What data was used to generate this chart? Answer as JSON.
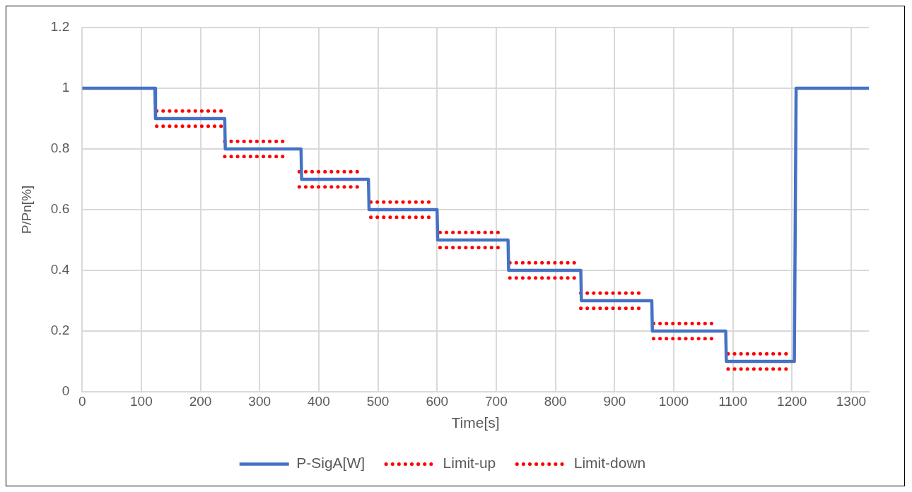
{
  "chart_data": {
    "type": "line",
    "xlabel": "Time[s]",
    "ylabel": "P/Pn[%]",
    "xlim": [
      0,
      1330
    ],
    "xticks": [
      0,
      100,
      200,
      300,
      400,
      500,
      600,
      700,
      800,
      900,
      1000,
      1100,
      1200,
      1300
    ],
    "ylim": [
      0,
      1.2
    ],
    "yticks": [
      0,
      0.2,
      0.4,
      0.6,
      0.8,
      1,
      1.2
    ],
    "grid": true,
    "legend": "bottom",
    "marker": "none",
    "series": [
      {
        "name": "P-SigA[W]",
        "color": "#4472c4",
        "line_style": "solid",
        "x": [
          0,
          123,
          124,
          241,
          242,
          370,
          371,
          484,
          485,
          600,
          601,
          720,
          721,
          843,
          844,
          963,
          964,
          1088,
          1089,
          1204,
          1207,
          1330
        ],
        "values": [
          1,
          1,
          0.9,
          0.9,
          0.8,
          0.8,
          0.7,
          0.7,
          0.6,
          0.6,
          0.5,
          0.5,
          0.4,
          0.4,
          0.3,
          0.3,
          0.2,
          0.2,
          0.1,
          0.1,
          1,
          1
        ]
      },
      {
        "name": "Limit-up",
        "color": "#ff0000",
        "line_style": "dotted",
        "x": [
          126,
          236,
          239,
          241,
          342,
          355,
          367,
          468,
          478,
          488,
          589,
          597,
          605,
          707,
          715,
          723,
          838,
          840,
          843,
          946,
          955,
          966,
          1065,
          1080,
          1092,
          1197
        ],
        "values": [
          0.925,
          0.925,
          null,
          0.825,
          0.825,
          null,
          0.725,
          0.725,
          null,
          0.625,
          0.625,
          null,
          0.525,
          0.525,
          null,
          0.425,
          0.425,
          null,
          0.325,
          0.325,
          null,
          0.225,
          0.225,
          null,
          0.125,
          0.125
        ]
      },
      {
        "name": "Limit-down",
        "color": "#ff0000",
        "line_style": "dotted",
        "x": [
          126,
          236,
          239,
          241,
          342,
          355,
          367,
          468,
          478,
          488,
          589,
          597,
          605,
          707,
          715,
          723,
          838,
          840,
          843,
          946,
          955,
          966,
          1065,
          1080,
          1092,
          1197
        ],
        "values": [
          0.875,
          0.875,
          null,
          0.775,
          0.775,
          null,
          0.675,
          0.675,
          null,
          0.575,
          0.575,
          null,
          0.475,
          0.475,
          null,
          0.375,
          0.375,
          null,
          0.275,
          0.275,
          null,
          0.175,
          0.175,
          null,
          0.075,
          0.075
        ]
      }
    ]
  }
}
